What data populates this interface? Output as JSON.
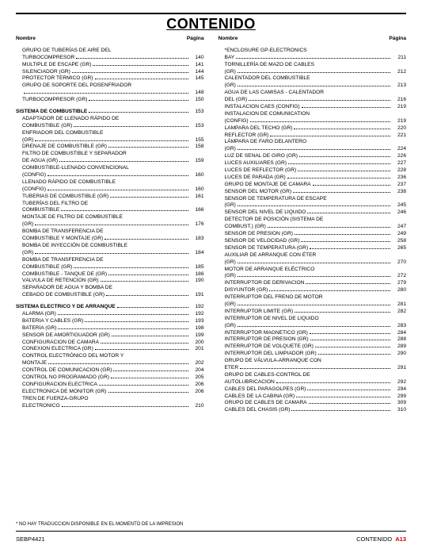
{
  "title": "CONTENIDO",
  "headers": {
    "name": "Nombre",
    "page": "Página"
  },
  "footnote": "* NO HAY TRADUCCION DISPONIBLE EN EL MOMENTO DE LA IMPRESION",
  "footer_left": "SEBP4421",
  "footer_right_label": "CONTENIDO",
  "footer_right_page": "A13",
  "left": [
    {
      "t": "cont",
      "label": "GRUPO DE TUBERÍAS DE AIRE DEL"
    },
    {
      "t": "item",
      "label": "TURBOCOMPRESOR",
      "pg": "140"
    },
    {
      "t": "item",
      "label": "MÚLTIPLE DE ESCAPE (GR)",
      "pg": "141"
    },
    {
      "t": "item",
      "label": "SILENCIADOR (GR)",
      "pg": "144"
    },
    {
      "t": "item",
      "label": "PROTECTOR TÉRMICO (GR)",
      "pg": "145"
    },
    {
      "t": "cont",
      "label": "GRUPO DE SOPORTE DEL POSENFRIADOR"
    },
    {
      "t": "item",
      "label": "",
      "pg": "148"
    },
    {
      "t": "item",
      "label": "TURBOCOMPRESOR (GR)",
      "pg": "150"
    },
    {
      "t": "gap"
    },
    {
      "t": "section",
      "label": "SISTEMA DE COMBUSTIBLE",
      "pg": "153"
    },
    {
      "t": "cont",
      "label": "ADAPTADOR DE LLENADO RÁPIDO DE"
    },
    {
      "t": "item",
      "label": "COMBUSTIBLE (GR)",
      "pg": "153"
    },
    {
      "t": "cont",
      "label": "ENFRIADOR DEL COMBUSTIBLE"
    },
    {
      "t": "item",
      "label": "(GR)",
      "pg": "155"
    },
    {
      "t": "item",
      "label": "DRENAJE DE COMBUSTIBLE (GR)",
      "pg": "158"
    },
    {
      "t": "cont",
      "label": "FILTRO DE COMBUSTIBLE Y SEPARADOR"
    },
    {
      "t": "item",
      "label": "DE AGUA (GR)",
      "pg": "159"
    },
    {
      "t": "cont",
      "label": "COMBUSTIBLE-LLENADO CONVENCIONAL"
    },
    {
      "t": "item",
      "label": "(CONFIG)",
      "pg": "160"
    },
    {
      "t": "cont",
      "label": "LLENADO RÁPIDO DE COMBUSTIBLE"
    },
    {
      "t": "item",
      "label": "(CONFIG)",
      "pg": "160"
    },
    {
      "t": "item",
      "label": "TUBERÍAS DE COMBUSTIBLE (GR)",
      "pg": "161"
    },
    {
      "t": "cont",
      "label": "TUBERÍAS DEL FILTRO DE"
    },
    {
      "t": "item",
      "label": "COMBUSTIBLE",
      "pg": "166"
    },
    {
      "t": "cont",
      "label": "MONTAJE DE FILTRO DE COMBUSTIBLE"
    },
    {
      "t": "item",
      "label": "(GR)",
      "pg": "176"
    },
    {
      "t": "cont",
      "label": "BOMBA DE TRANSFERENCIA DE"
    },
    {
      "t": "item",
      "label": "COMBUSTIBLE Y MONTAJE (GR)",
      "pg": "183"
    },
    {
      "t": "cont",
      "label": "BOMBA DE INYECCIÓN DE COMBUSTIBLE"
    },
    {
      "t": "item",
      "label": "(GR)",
      "pg": "184"
    },
    {
      "t": "cont",
      "label": "BOMBA DE TRANSFERENCIA DE"
    },
    {
      "t": "item",
      "label": "COMBUSTIBLE (GR)",
      "pg": "185"
    },
    {
      "t": "item",
      "label": "COMBUSTIBLE - TANQUE DE (GR)",
      "pg": "186"
    },
    {
      "t": "item",
      "label": "VÁLVULA DE RETENCIÓN (GR)",
      "pg": "190"
    },
    {
      "t": "cont",
      "label": "SEPARADOR DE AGUA Y BOMBA DE"
    },
    {
      "t": "item",
      "label": "CEBADO DE COMBUSTIBLE (GR)",
      "pg": "191"
    },
    {
      "t": "gap"
    },
    {
      "t": "section",
      "label": "SISTEMA ELECTRICO Y DE ARRANQUE",
      "pg": "192"
    },
    {
      "t": "item",
      "label": "ALARMA (GR)",
      "pg": "192"
    },
    {
      "t": "item",
      "label": "BATERÍA Y CABLES (GR)",
      "pg": "193"
    },
    {
      "t": "item",
      "label": "BATERÍA (GR)",
      "pg": "198"
    },
    {
      "t": "item",
      "label": "SENSOR DE AMORTIGUADOR (GR)",
      "pg": "199"
    },
    {
      "t": "item",
      "label": "CONFIGURACIÓN DE CÁMARA",
      "pg": "200"
    },
    {
      "t": "item",
      "label": "CONEXIÓN ELÉCTRICA (GR)",
      "pg": "201"
    },
    {
      "t": "cont",
      "label": "CONTROL ELECTRÓNICO DEL MOTOR Y"
    },
    {
      "t": "item",
      "label": "MONTAJE",
      "pg": "202"
    },
    {
      "t": "item",
      "label": "CONTROL DE COMUNICACION (GR)",
      "pg": "204"
    },
    {
      "t": "item",
      "label": "CONTROL NO PROGRAMADO (GR)",
      "pg": "205"
    },
    {
      "t": "item",
      "label": "CONFIGURACIÓN ELÉCTRICA",
      "pg": "206"
    },
    {
      "t": "item",
      "label": "ELECTRONICA DE MONITOR (GR)",
      "pg": "206"
    },
    {
      "t": "cont",
      "label": "TREN DE FUERZA-GRUPO"
    },
    {
      "t": "item",
      "label": "ELECTRÓNICO",
      "pg": "210"
    }
  ],
  "right": [
    {
      "t": "cont",
      "label": "*ENCLOSURE GP-ELECTRONICS"
    },
    {
      "t": "item",
      "label": "BAY",
      "pg": "211"
    },
    {
      "t": "cont",
      "label": "TORNILLERÍA DE MAZO DE CABLES"
    },
    {
      "t": "item",
      "label": "(GR)",
      "pg": "212"
    },
    {
      "t": "cont",
      "label": "CALENTADOR DEL COMBUSTIBLE"
    },
    {
      "t": "item",
      "label": "(GR)",
      "pg": "213"
    },
    {
      "t": "cont",
      "label": "AGUA DE LAS CAMISAS - CALENTADOR"
    },
    {
      "t": "item",
      "label": "DEL (GR)",
      "pg": "216"
    },
    {
      "t": "item",
      "label": "INSTALACIÓN CAES (CONFIG)",
      "pg": "219"
    },
    {
      "t": "cont",
      "label": "INSTALACION DE COMUNICATION"
    },
    {
      "t": "item",
      "label": "(CONFIG)",
      "pg": "219"
    },
    {
      "t": "item",
      "label": "LÁMPARA DEL TECHO (GR)",
      "pg": "220"
    },
    {
      "t": "item",
      "label": "REFLECTOR (GR)",
      "pg": "221"
    },
    {
      "t": "cont",
      "label": "LÁMPARA DE FARO DELANTERO"
    },
    {
      "t": "item",
      "label": "(GR)",
      "pg": "224"
    },
    {
      "t": "item",
      "label": "LUZ DE SEÑAL DE GIRO (GR)",
      "pg": "226"
    },
    {
      "t": "item",
      "label": "LUCES AUXILIARES (GR)",
      "pg": "227"
    },
    {
      "t": "item",
      "label": "LUCES DE REFLECTOR (GR)",
      "pg": "228"
    },
    {
      "t": "item",
      "label": "LUCES DE PARADA (GR)",
      "pg": "236"
    },
    {
      "t": "item",
      "label": "GRUPO DE MONTAJE DE CÁMARA",
      "pg": "237"
    },
    {
      "t": "item",
      "label": "SENSOR DEL MOTOR (GR)",
      "pg": "238"
    },
    {
      "t": "cont",
      "label": "SENSOR DE TEMPERATURA DE ESCAPE"
    },
    {
      "t": "item",
      "label": "(GR)",
      "pg": "245"
    },
    {
      "t": "item",
      "label": "SENSOR DEL NIVEL DE LÍQUIDO",
      "pg": "246"
    },
    {
      "t": "cont",
      "label": "DETECTOR DE POSICIÓN (SISTEMA DE"
    },
    {
      "t": "item",
      "label": "COMBUST.) (GR)",
      "pg": "247"
    },
    {
      "t": "item",
      "label": "SENSOR DE PRESIÓN (GR)",
      "pg": "249"
    },
    {
      "t": "item",
      "label": "SENSOR DE VELOCIDAD (GR)",
      "pg": "258"
    },
    {
      "t": "item",
      "label": "SENSOR DE TEMPERATURA (GR)",
      "pg": "265"
    },
    {
      "t": "cont",
      "label": "AUXILIAR DE ARRANQUE CON ÉTER"
    },
    {
      "t": "item",
      "label": "(GR)",
      "pg": "270"
    },
    {
      "t": "cont",
      "label": "MOTOR DE ARRANQUE ELÉCTRICO"
    },
    {
      "t": "item",
      "label": "(GR)",
      "pg": "272"
    },
    {
      "t": "item",
      "label": "INTERRUPTOR DE DERIVACIÓN",
      "pg": "279"
    },
    {
      "t": "item",
      "label": "DISYUNTOR (GR)",
      "pg": "280"
    },
    {
      "t": "cont",
      "label": "INTERRUPTOR DEL FRENO DE MOTOR"
    },
    {
      "t": "item",
      "label": "(GR)",
      "pg": "281"
    },
    {
      "t": "item",
      "label": "INTERRUPTOR LÍMITE (GR)",
      "pg": "282"
    },
    {
      "t": "cont",
      "label": "INTERRUPTOR DE NIVEL DE LIQUIDO"
    },
    {
      "t": "item",
      "label": "(GR)",
      "pg": "283"
    },
    {
      "t": "item",
      "label": "INTERRUPTOR MAGNÉTICO (GR)",
      "pg": "284"
    },
    {
      "t": "item",
      "label": "INTERRUPTOR DE PRESIÓN (GR)",
      "pg": "288"
    },
    {
      "t": "item",
      "label": "INTERRUPTOR DE VOLQUETE (GR)",
      "pg": "289"
    },
    {
      "t": "item",
      "label": "INTERRUPTOR DEL LIMPIADOR (GR)",
      "pg": "290"
    },
    {
      "t": "cont",
      "label": "GRUPO DE VÁLVULA-ARRANQUE CON"
    },
    {
      "t": "item",
      "label": "ÉTER",
      "pg": "291"
    },
    {
      "t": "cont",
      "label": "GRUPO DE CABLES-CONTROL DE"
    },
    {
      "t": "item",
      "label": "AUTOLUBRICACIÓN",
      "pg": "292"
    },
    {
      "t": "item",
      "label": "CABLES DEL PARAGOLPES (GR)",
      "pg": "294"
    },
    {
      "t": "item",
      "label": "CABLES DE LA CABINA (GR)",
      "pg": "299"
    },
    {
      "t": "item",
      "label": "GRUPO DE CABLES DE CÁMARA",
      "pg": "309"
    },
    {
      "t": "item",
      "label": "CABLES DEL CHASIS (GR)",
      "pg": "310"
    }
  ]
}
